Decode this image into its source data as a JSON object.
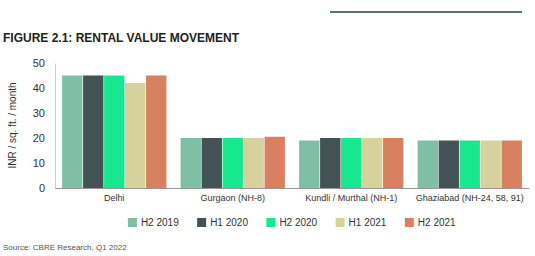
{
  "chart_data": {
    "type": "bar",
    "title": "FIGURE 2.1: RENTAL VALUE MOVEMENT",
    "y_label": "INR / sq. ft. / month",
    "source": "Source: CBRE Research, Q1 2022",
    "categories": [
      "Delhi",
      "Gurgaon (NH-8)",
      "Kundli / Murthal (NH-1)",
      "Ghaziabad (NH-24, 58, 91)"
    ],
    "series": [
      {
        "name": "H2 2019",
        "color": "#7fbfa6",
        "values": [
          45,
          20,
          19,
          19
        ]
      },
      {
        "name": "H1 2020",
        "color": "#435254",
        "values": [
          45,
          20,
          20,
          19
        ]
      },
      {
        "name": "H2 2020",
        "color": "#17e88f",
        "values": [
          45,
          20,
          20,
          19
        ]
      },
      {
        "name": "H1 2021",
        "color": "#d7d29c",
        "values": [
          42,
          20,
          20,
          19
        ]
      },
      {
        "name": "H2 2021",
        "color": "#d98061",
        "values": [
          45,
          20.5,
          20,
          19
        ]
      }
    ],
    "ylim": [
      0,
      50
    ],
    "yticks": [
      0,
      10,
      20,
      30,
      40,
      50
    ],
    "grid": false,
    "legend": "bottom"
  }
}
